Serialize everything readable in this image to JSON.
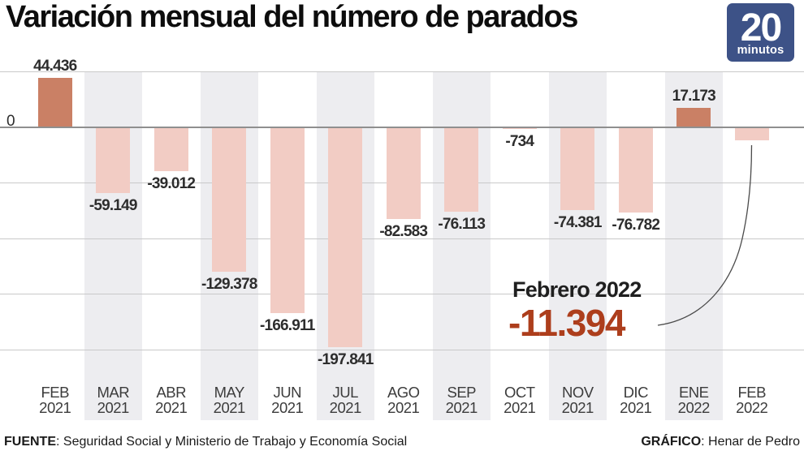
{
  "title": "Variación mensual del número de parados",
  "logo": {
    "big": "20",
    "small": "minutos",
    "bg_color": "#3d5287"
  },
  "axis": {
    "zero_label": "0"
  },
  "chart_data": {
    "type": "bar",
    "title": "Variación mensual del número de parados",
    "xlabel": "",
    "ylabel": "",
    "ylim": [
      -200000,
      50000
    ],
    "gridline_step": 50000,
    "grid": true,
    "categories": [
      "FEB 2021",
      "MAR 2021",
      "ABR 2021",
      "MAY 2021",
      "JUN 2021",
      "JUL 2021",
      "AGO 2021",
      "SEP 2021",
      "OCT 2021",
      "NOV 2021",
      "DIC 2021",
      "ENE 2022",
      "FEB 2022"
    ],
    "values": [
      44436,
      -59149,
      -39012,
      -129378,
      -166911,
      -197841,
      -82583,
      -76113,
      -734,
      -74381,
      -76782,
      17173,
      -11394
    ],
    "points": [
      {
        "month": "FEB",
        "year": "2021",
        "value": 44436,
        "label": "44.436",
        "stripe": false
      },
      {
        "month": "MAR",
        "year": "2021",
        "value": -59149,
        "label": "-59.149",
        "stripe": true
      },
      {
        "month": "ABR",
        "year": "2021",
        "value": -39012,
        "label": "-39.012",
        "stripe": false
      },
      {
        "month": "MAY",
        "year": "2021",
        "value": -129378,
        "label": "-129.378",
        "stripe": true
      },
      {
        "month": "JUN",
        "year": "2021",
        "value": -166911,
        "label": "-166.911",
        "stripe": false
      },
      {
        "month": "JUL",
        "year": "2021",
        "value": -197841,
        "label": "-197.841",
        "stripe": true
      },
      {
        "month": "AGO",
        "year": "2021",
        "value": -82583,
        "label": "-82.583",
        "stripe": false
      },
      {
        "month": "SEP",
        "year": "2021",
        "value": -76113,
        "label": "-76.113",
        "stripe": true
      },
      {
        "month": "OCT",
        "year": "2021",
        "value": -734,
        "label": "-734",
        "stripe": false
      },
      {
        "month": "NOV",
        "year": "2021",
        "value": -74381,
        "label": "-74.381",
        "stripe": true
      },
      {
        "month": "DIC",
        "year": "2021",
        "value": -76782,
        "label": "-76.782",
        "stripe": false
      },
      {
        "month": "ENE",
        "year": "2022",
        "value": 17173,
        "label": "17.173",
        "stripe": true
      },
      {
        "month": "FEB",
        "year": "2022",
        "value": -11394,
        "label": null,
        "stripe": false,
        "annotated": true
      }
    ],
    "colors": {
      "positive_bar": "#ca8065",
      "negative_bar": "#f2ccc4",
      "stripe": "#ededf0",
      "gridline": "#c9c9c9",
      "zero_line": "#8f8f8f"
    }
  },
  "annotation": {
    "title": "Febrero 2022",
    "value": "-11.394",
    "value_color": "#ad3e1c"
  },
  "footer": {
    "source_label": "FUENTE",
    "source_text": ": Seguridad Social y Ministerio de Trabajo y Economía Social",
    "credit_label": "GRÁFICO",
    "credit_text": ": Henar de Pedro"
  }
}
